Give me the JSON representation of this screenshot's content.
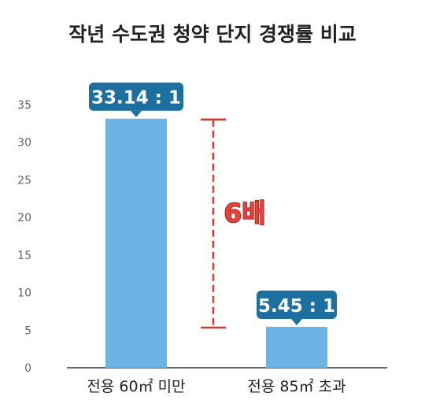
{
  "chart_data": {
    "type": "bar",
    "title": "작년 수도권 청약 단지 경쟁률 비교",
    "xlabel": "",
    "ylabel": "",
    "categories": [
      "전용 60㎡ 미만",
      "전용 85㎡ 초과"
    ],
    "values": [
      33.14,
      5.45
    ],
    "data_labels": [
      "33.14 : 1",
      "5.45 : 1"
    ],
    "ylim": [
      0,
      35
    ],
    "yticks": [
      "0",
      "5",
      "10",
      "15",
      "20",
      "25",
      "30",
      "35"
    ],
    "grid": false,
    "legend": "none",
    "annotation": {
      "text": "6배",
      "from_value": 5.45,
      "to_value": 33.14
    },
    "colors": {
      "bar": "#6cb4e4",
      "label_bubble": "#1d6fa0",
      "annotation": "#d03a2e",
      "axis": "#333333"
    }
  }
}
